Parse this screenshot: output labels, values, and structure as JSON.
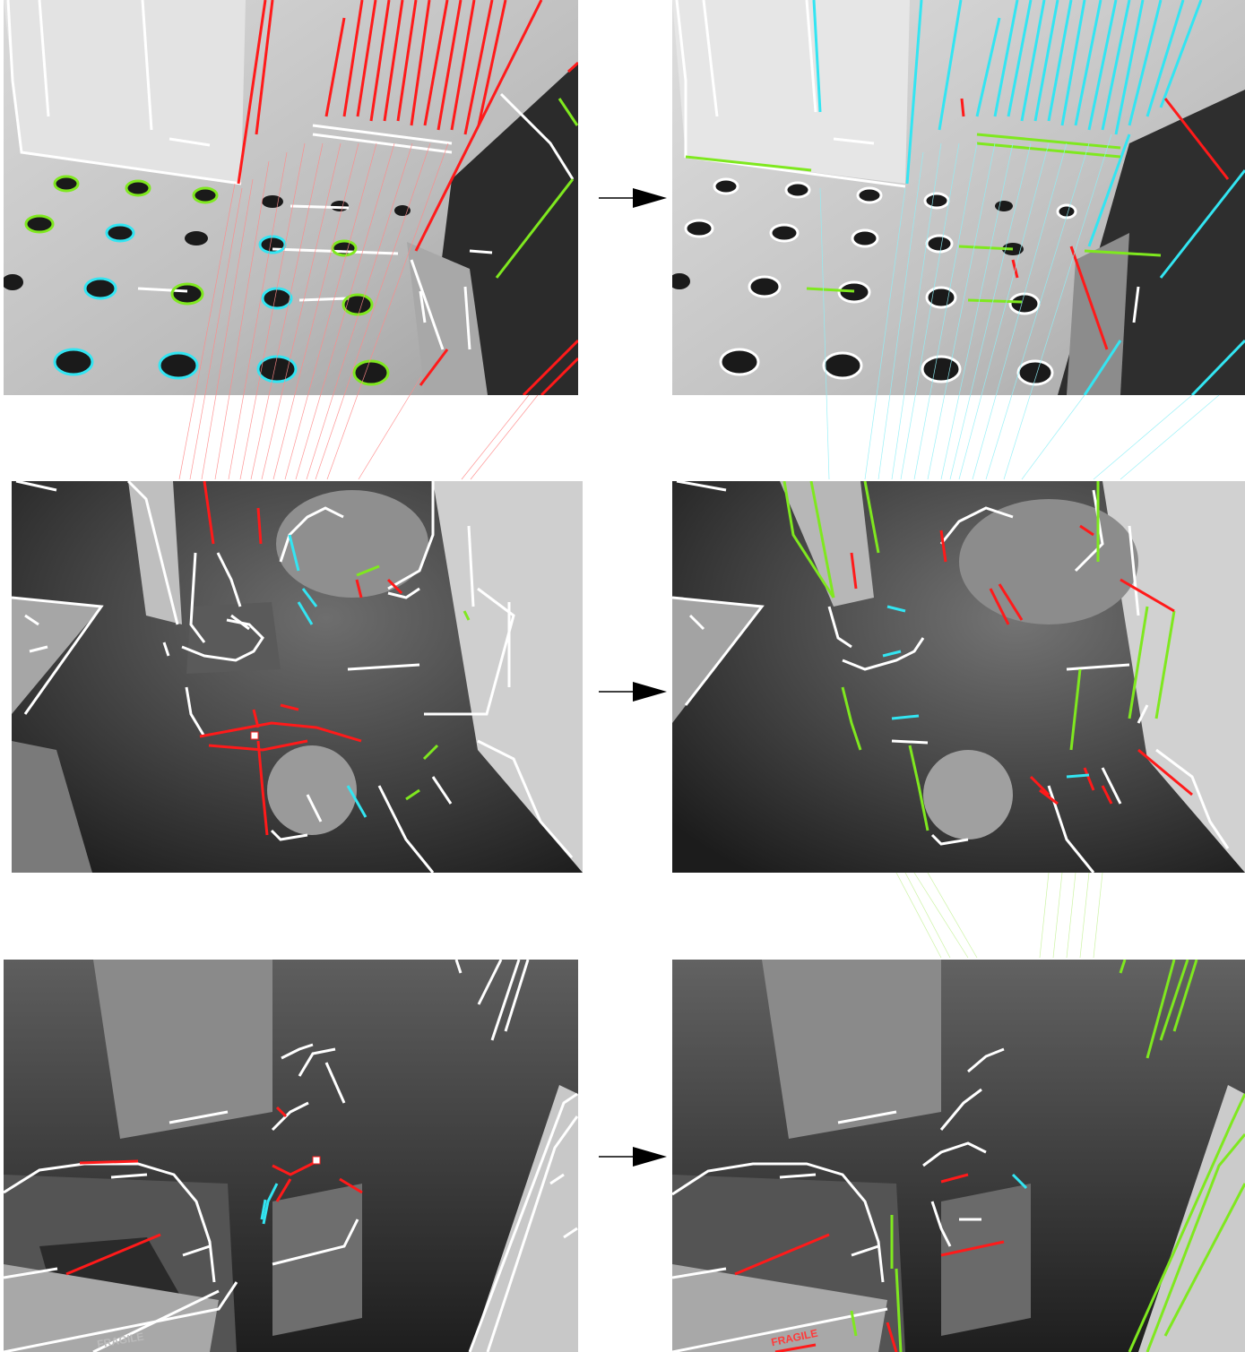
{
  "figure": {
    "rows": [
      {
        "id": "row-1",
        "left_scene": "dotted-floor-door-scene",
        "right_scene": "dotted-floor-door-scene-next"
      },
      {
        "id": "row-2",
        "left_scene": "cluttered-room-scene",
        "right_scene": "cluttered-room-scene-next"
      },
      {
        "id": "row-3",
        "left_scene": "hallway-basket-scene",
        "right_scene": "hallway-basket-scene-next"
      }
    ],
    "arrows": [
      "arrow-row-1",
      "arrow-row-2",
      "arrow-row-3"
    ],
    "colors": {
      "segment_default": "#ffffff",
      "segment_red": "#ff1a1a",
      "segment_cyan": "#33e5f2",
      "segment_green": "#7fe81f",
      "match_red": "#ff8a8a",
      "match_cyan": "#8ff0f7",
      "match_green": "#c6f29a",
      "arrow": "#000000"
    },
    "box_labels": {
      "left_panel_3": "FRAGILE",
      "right_panel_3": "FRAGILE"
    }
  }
}
